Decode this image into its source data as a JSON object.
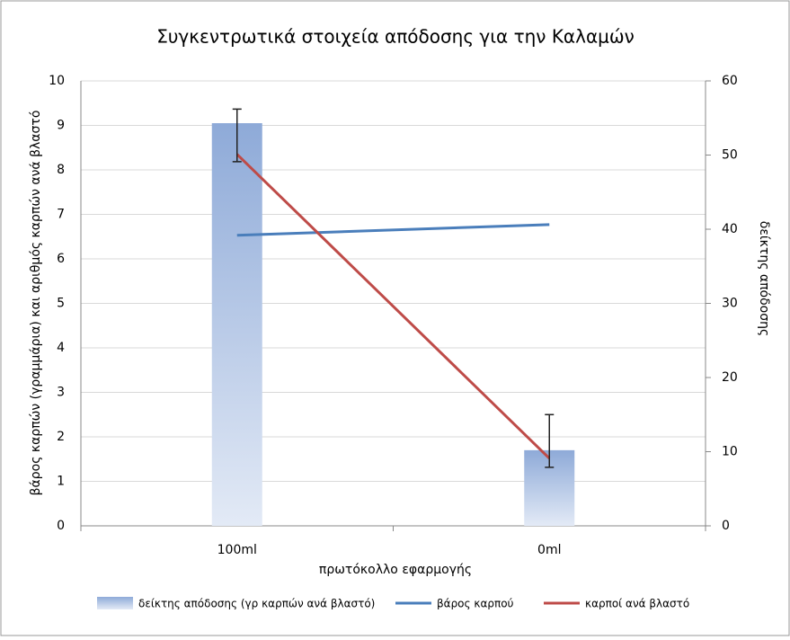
{
  "chart_data": {
    "type": "bar-line",
    "title": "Συγκεντρωτικά στοιχεία απόδοσης για την Καλαμών",
    "x_label": "πρωτόκολλο εφαρμογής",
    "y_label": "βάρος καρπών (γραμμάρια) και αριθμός καρπών ανά βλαστό",
    "y2_label": "δείκτης απόδοσης",
    "categories": [
      "100ml",
      "0ml"
    ],
    "series": [
      {
        "name": "δείκτης απόδοσης (γρ καρπών ανά βλαστό)",
        "kind": "bar",
        "color": "#8eaad8",
        "values": [
          9.05,
          1.7
        ]
      },
      {
        "name": "βάρος καρπού",
        "kind": "line",
        "color": "#4a7ebb",
        "values": [
          6.53,
          6.77
        ]
      },
      {
        "name": "καρποί ανά βλαστό",
        "kind": "line",
        "color": "#be4b48",
        "axis": "y2",
        "values": [
          50.1,
          9.1
        ],
        "error_ranges": [
          [
            49.1,
            56.2
          ],
          [
            7.9,
            15.0
          ]
        ]
      }
    ],
    "ylim": [
      0,
      10
    ],
    "yticks": [
      0,
      1,
      2,
      3,
      4,
      5,
      6,
      7,
      8,
      9,
      10
    ],
    "y2lim": [
      0,
      60
    ],
    "y2ticks": [
      0,
      10,
      20,
      30,
      40,
      50,
      60
    ],
    "grid": true,
    "legend": "bottom"
  }
}
